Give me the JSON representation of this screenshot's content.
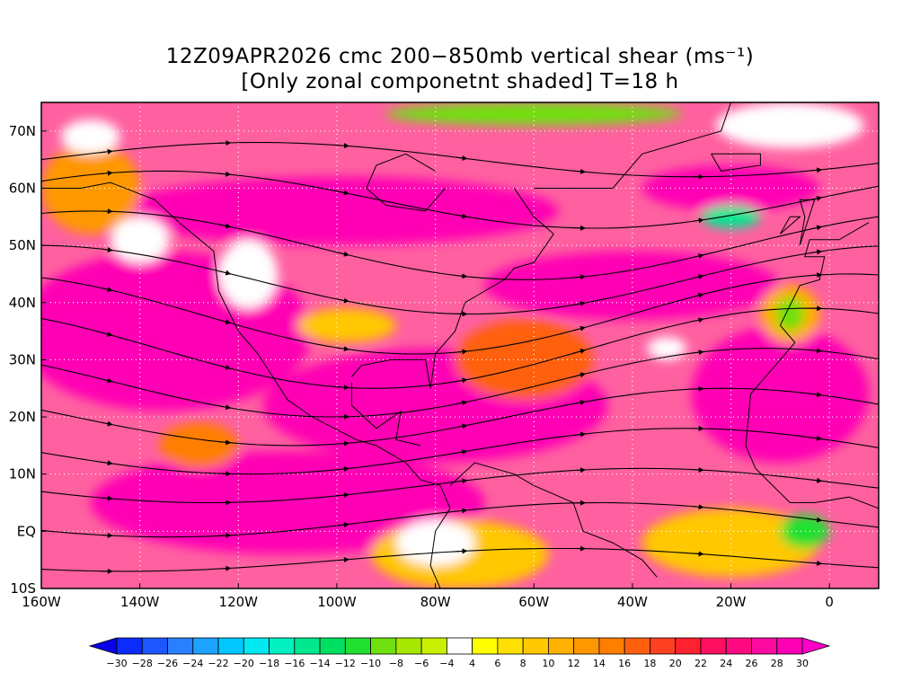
{
  "chart_data": {
    "type": "heatmap",
    "title_line1": "12Z09APR2026 cmc 200−850mb vertical shear (ms⁻¹)",
    "title_line2": "[Only zonal componetnt shaded] T=18 h",
    "x_ticks": [
      {
        "value": -160,
        "label": "160W"
      },
      {
        "value": -140,
        "label": "140W"
      },
      {
        "value": -120,
        "label": "120W"
      },
      {
        "value": -100,
        "label": "100W"
      },
      {
        "value": -80,
        "label": "80W"
      },
      {
        "value": -60,
        "label": "60W"
      },
      {
        "value": -40,
        "label": "40W"
      },
      {
        "value": -20,
        "label": "20W"
      },
      {
        "value": 0,
        "label": "0"
      }
    ],
    "y_ticks": [
      {
        "value": 70,
        "label": "70N"
      },
      {
        "value": 60,
        "label": "60N"
      },
      {
        "value": 50,
        "label": "50N"
      },
      {
        "value": 40,
        "label": "40N"
      },
      {
        "value": 30,
        "label": "30N"
      },
      {
        "value": 20,
        "label": "20N"
      },
      {
        "value": 10,
        "label": "10N"
      },
      {
        "value": 0,
        "label": "EQ"
      },
      {
        "value": -10,
        "label": "10S"
      }
    ],
    "xlim": [
      -160,
      10
    ],
    "ylim": [
      -10,
      75
    ],
    "grid": true,
    "colorbar": {
      "labels": [
        "−30",
        "−28",
        "−26",
        "−24",
        "−22",
        "−20",
        "−18",
        "−16",
        "−14",
        "−12",
        "−10",
        "−8",
        "−6",
        "−4",
        "4",
        "6",
        "8",
        "10",
        "12",
        "14",
        "16",
        "18",
        "20",
        "22",
        "24",
        "26",
        "28",
        "30"
      ],
      "colors": [
        "#0b00e6",
        "#0a2cff",
        "#1d55ff",
        "#2a7fff",
        "#1ba3ff",
        "#00c8ff",
        "#00e8f0",
        "#00f0c0",
        "#00e890",
        "#00e060",
        "#20e030",
        "#70e010",
        "#a8e800",
        "#c8f000",
        "#ffffff",
        "#ffff00",
        "#ffe000",
        "#ffc800",
        "#ffb000",
        "#ff9800",
        "#ff7e00",
        "#ff6010",
        "#ff4020",
        "#ff2030",
        "#ff1060",
        "#ff0a80",
        "#ff0aa0",
        "#ff00b4",
        "#ff00c8"
      ]
    },
    "fields": {
      "regions": [
        {
          "shade": 30,
          "lon": -135,
          "lat": 35,
          "rx": 30,
          "ry": 14
        },
        {
          "shade": 30,
          "lon": -80,
          "lat": 22,
          "rx": 35,
          "ry": 10
        },
        {
          "shade": 30,
          "lon": -40,
          "lat": 43,
          "rx": 30,
          "ry": 6
        },
        {
          "shade": 30,
          "lon": -110,
          "lat": 5,
          "rx": 40,
          "ry": 9
        },
        {
          "shade": 30,
          "lon": -10,
          "lat": 24,
          "rx": 18,
          "ry": 12
        },
        {
          "shade": 30,
          "lon": -100,
          "lat": 56,
          "rx": 45,
          "ry": 6
        },
        {
          "shade": 30,
          "lon": -20,
          "lat": 60,
          "rx": 18,
          "ry": 4
        },
        {
          "shade": 14,
          "lon": -150,
          "lat": 60,
          "rx": 10,
          "ry": 8
        },
        {
          "shade": 4,
          "lon": -140,
          "lat": 51,
          "rx": 6,
          "ry": 4
        },
        {
          "shade": 4,
          "lon": -118,
          "lat": 45,
          "rx": 6,
          "ry": 6
        },
        {
          "shade": 18,
          "lon": -62,
          "lat": 30,
          "rx": 14,
          "ry": 7
        },
        {
          "shade": 4,
          "lon": -33,
          "lat": 32,
          "rx": 4,
          "ry": 2
        },
        {
          "shade": 10,
          "lon": -75,
          "lat": -4,
          "rx": 18,
          "ry": 6
        },
        {
          "shade": 4,
          "lon": -80,
          "lat": -2,
          "rx": 8,
          "ry": 4
        },
        {
          "shade": 10,
          "lon": -20,
          "lat": -2,
          "rx": 18,
          "ry": 6
        },
        {
          "shade": -10,
          "lon": -5,
          "lat": 0,
          "rx": 5,
          "ry": 3
        },
        {
          "shade": -8,
          "lon": -60,
          "lat": 73,
          "rx": 30,
          "ry": 2
        },
        {
          "shade": -14,
          "lon": -20,
          "lat": 55,
          "rx": 6,
          "ry": 2
        },
        {
          "shade": 4,
          "lon": -8,
          "lat": 71,
          "rx": 15,
          "ry": 4
        },
        {
          "shade": 12,
          "lon": -8,
          "lat": 38,
          "rx": 6,
          "ry": 5
        },
        {
          "shade": -8,
          "lon": -8,
          "lat": 38,
          "rx": 3,
          "ry": 3
        },
        {
          "shade": 16,
          "lon": -128,
          "lat": 15,
          "rx": 8,
          "ry": 4
        },
        {
          "shade": 10,
          "lon": -98,
          "lat": 36,
          "rx": 10,
          "ry": 3
        },
        {
          "shade": 4,
          "lon": -150,
          "lat": 69,
          "rx": 6,
          "ry": 3
        }
      ],
      "streamlines": [
        {
          "lat": 65,
          "amp": 3,
          "phase": 0
        },
        {
          "lat": 58,
          "amp": 5,
          "phase": 0.7
        },
        {
          "lat": 50,
          "amp": 6,
          "phase": 1.2
        },
        {
          "lat": 44,
          "amp": 6,
          "phase": 1.6
        },
        {
          "lat": 38,
          "amp": 7,
          "phase": 2.0
        },
        {
          "lat": 32,
          "amp": 7,
          "phase": 2.3
        },
        {
          "lat": 26,
          "amp": 6,
          "phase": 2.6
        },
        {
          "lat": 20,
          "amp": 5,
          "phase": 2.9
        },
        {
          "lat": 14,
          "amp": 4,
          "phase": 3.2
        },
        {
          "lat": 8,
          "amp": 3,
          "phase": 3.5
        },
        {
          "lat": 2,
          "amp": 3,
          "phase": 3.8
        },
        {
          "lat": -5,
          "amp": 2,
          "phase": 4.1
        }
      ]
    }
  }
}
